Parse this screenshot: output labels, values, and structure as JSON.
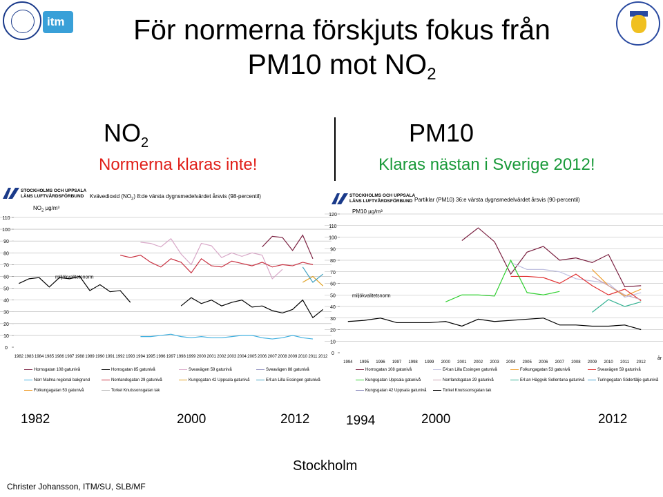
{
  "title": {
    "line1": "För normerna förskjuts fokus från",
    "line2_pre": "PM10 mot NO",
    "line2_sub": "2"
  },
  "left_header": {
    "label": "NO",
    "label_sub": "2",
    "status": "Normerna klaras inte!"
  },
  "right_header": {
    "label": "PM10",
    "status": "Klaras nästan i Sverige 2012!"
  },
  "org": {
    "line1": "STOCKHOLMS OCH UPPSALA",
    "line2": "LÄNS LUFTVÅRDSFÖRBUND"
  },
  "bottom_years": {
    "left": [
      "1982",
      "2000",
      "2012"
    ],
    "right": [
      "1994",
      "2000",
      "2012"
    ]
  },
  "footer": "Christer Johansson, ITM/SU, SLB/MF",
  "city": "Stockholm",
  "colors": {
    "red_status": "#e0201a",
    "green_status": "#1a9a3a"
  },
  "chart_data": [
    {
      "type": "line",
      "title_parts": [
        "Kvävedioxid (NO",
        "2",
        ") 8:de värsta dygnsmedelvärdet årsvis (98-percentil)"
      ],
      "ylabel_parts": [
        "NO",
        "2",
        " µg/m³"
      ],
      "x": [
        1982,
        1983,
        1984,
        1985,
        1986,
        1987,
        1988,
        1989,
        1990,
        1991,
        1992,
        1993,
        1994,
        1995,
        1996,
        1997,
        1998,
        1999,
        2000,
        2001,
        2002,
        2003,
        2004,
        2005,
        2006,
        2007,
        2008,
        2009,
        2010,
        2011,
        2012
      ],
      "xtick_labels": [
        "1982",
        "1983",
        "1984",
        "1985",
        "1986",
        "1987",
        "1988",
        "1989",
        "1990",
        "1991",
        "1992",
        "1993",
        "1994",
        "1995",
        "1996",
        "1997",
        "1998",
        "1999",
        "2000",
        "2001",
        "2002",
        "2003",
        "2004",
        "2005",
        "2006",
        "2007",
        "2008",
        "2009",
        "2010",
        "2011",
        "2012"
      ],
      "ylim": [
        0,
        110
      ],
      "yticks": [
        0,
        10,
        20,
        30,
        40,
        50,
        60,
        70,
        80,
        90,
        100,
        110
      ],
      "norm_label": "miljökvalitetsnorm",
      "norm_value": 60,
      "series": [
        {
          "name": "Hornsgatan 108 gatunivå",
          "color": "#7a2040",
          "values": [
            null,
            null,
            null,
            null,
            null,
            null,
            null,
            null,
            null,
            null,
            null,
            null,
            null,
            null,
            null,
            null,
            null,
            null,
            null,
            null,
            null,
            null,
            null,
            null,
            85,
            94,
            93,
            82,
            95,
            75,
            null
          ]
        },
        {
          "name": "Hornsgatan 85 gatunivå",
          "color": "#000000",
          "values": [
            54,
            58,
            59,
            51,
            59,
            58,
            60,
            48,
            53,
            47,
            48,
            38,
            null,
            null,
            null,
            null,
            35,
            42,
            37,
            40,
            35,
            38,
            40,
            34,
            35,
            31,
            29,
            32,
            40,
            25,
            32
          ]
        },
        {
          "name": "Sveavägen 59 gatunivå",
          "color": "#d8a8c8",
          "values": [
            null,
            null,
            null,
            null,
            null,
            null,
            null,
            null,
            null,
            null,
            null,
            null,
            89,
            88,
            85,
            92,
            79,
            70,
            88,
            86,
            76,
            80,
            77,
            80,
            78,
            58,
            66,
            null,
            null,
            null,
            null
          ]
        },
        {
          "name": "Sveavägen 88 gatunivå",
          "color": "#9090c0",
          "values": [
            null,
            null,
            null,
            null,
            null,
            null,
            null,
            null,
            null,
            null,
            null,
            null,
            null,
            null,
            null,
            null,
            null,
            null,
            null,
            null,
            null,
            null,
            null,
            null,
            null,
            null,
            null,
            null,
            null,
            null,
            null
          ]
        },
        {
          "name": "Norr Malma regional bakgrund",
          "color": "#40b0e0",
          "values": [
            null,
            null,
            null,
            null,
            null,
            null,
            null,
            null,
            null,
            null,
            null,
            null,
            9,
            9,
            10,
            11,
            9,
            8,
            9,
            8,
            8,
            9,
            10,
            10,
            8,
            7,
            8,
            10,
            8,
            7,
            null
          ]
        },
        {
          "name": "Norrlandsgatan 29 gatunivå",
          "color": "#c83040",
          "values": [
            null,
            null,
            null,
            null,
            null,
            null,
            null,
            null,
            null,
            null,
            78,
            76,
            78,
            72,
            68,
            75,
            72,
            63,
            75,
            69,
            68,
            73,
            71,
            69,
            72,
            68,
            70,
            69,
            72,
            70,
            null
          ]
        },
        {
          "name": "Kungsgatan 42 Uppsala gatunivå",
          "color": "#e0a020",
          "values": [
            null,
            null,
            null,
            null,
            null,
            null,
            null,
            null,
            null,
            null,
            null,
            null,
            null,
            null,
            null,
            null,
            null,
            null,
            null,
            null,
            null,
            null,
            null,
            null,
            null,
            null,
            null,
            null,
            55,
            60,
            52
          ]
        },
        {
          "name": "E4:an Lilla Essingen gatunivå",
          "color": "#40a0c0",
          "values": [
            null,
            null,
            null,
            null,
            null,
            null,
            null,
            null,
            null,
            null,
            null,
            null,
            null,
            null,
            null,
            null,
            null,
            null,
            null,
            null,
            null,
            null,
            null,
            null,
            null,
            null,
            null,
            null,
            68,
            55,
            62
          ]
        },
        {
          "name": "Folkungagatan 53 gatunivå",
          "color": "#f0a030",
          "values": [
            null,
            null,
            null,
            null,
            null,
            null,
            null,
            null,
            null,
            null,
            null,
            null,
            null,
            null,
            null,
            null,
            null,
            null,
            null,
            null,
            null,
            null,
            null,
            null,
            null,
            null,
            null,
            null,
            null,
            null,
            null
          ]
        },
        {
          "name": "Torkel Knutssonsgatan tak",
          "color": "#c0c0c0",
          "values": [
            null,
            null,
            null,
            null,
            null,
            null,
            null,
            null,
            null,
            null,
            null,
            null,
            null,
            null,
            null,
            null,
            null,
            null,
            null,
            null,
            null,
            null,
            null,
            null,
            null,
            null,
            null,
            null,
            null,
            null,
            null
          ]
        }
      ]
    },
    {
      "type": "line",
      "title": "Partiklar (PM10) 36:e värsta dygnsmedelvärdet årsvis (90-percentil)",
      "ylabel": "PM10 µg/m³",
      "xaxis_label": "år",
      "x": [
        1994,
        1995,
        1996,
        1997,
        1998,
        1999,
        2000,
        2001,
        2002,
        2003,
        2004,
        2005,
        2006,
        2007,
        2008,
        2009,
        2010,
        2011,
        2012
      ],
      "xtick_labels": [
        "1994",
        "1995",
        "1996",
        "1997",
        "1998",
        "1999",
        "2000",
        "2001",
        "2002",
        "2003",
        "2004",
        "2005",
        "2006",
        "2007",
        "2008",
        "2009",
        "2010",
        "2011",
        "2012"
      ],
      "ylim": [
        0,
        120
      ],
      "yticks": [
        0,
        10,
        20,
        30,
        40,
        50,
        60,
        70,
        80,
        90,
        100,
        110,
        120
      ],
      "norm_label": "miljökvalitetsnorm",
      "norm_value": 50,
      "series": [
        {
          "name": "Hornsgatan 108 gatunivå",
          "color": "#7a2040",
          "values": [
            null,
            null,
            null,
            null,
            null,
            null,
            null,
            97,
            108,
            96,
            68,
            87,
            92,
            80,
            82,
            78,
            85,
            57,
            58
          ]
        },
        {
          "name": "E4:an Lilla Essingen gatunivå",
          "color": "#c0c0e0",
          "values": [
            null,
            null,
            null,
            null,
            null,
            null,
            null,
            null,
            null,
            null,
            78,
            72,
            72,
            70,
            64,
            62,
            60,
            48,
            52
          ]
        },
        {
          "name": "Folkungagatan 53 gatunivå",
          "color": "#f0a030",
          "values": [
            null,
            null,
            null,
            null,
            null,
            null,
            null,
            null,
            null,
            null,
            null,
            null,
            null,
            null,
            null,
            72,
            58,
            49,
            55
          ]
        },
        {
          "name": "Sveavägen 59 gatunivå",
          "color": "#e03030",
          "values": [
            null,
            null,
            null,
            null,
            null,
            null,
            null,
            null,
            null,
            null,
            66,
            66,
            65,
            60,
            68,
            58,
            50,
            55,
            45
          ]
        },
        {
          "name": "Kungsgatan Uppsala gatunivå",
          "color": "#30d030",
          "values": [
            null,
            null,
            null,
            null,
            null,
            null,
            44,
            50,
            50,
            49,
            80,
            52,
            50,
            53,
            null,
            null,
            null,
            null,
            null
          ]
        },
        {
          "name": "Norrlandsgatan 29 gatunivå",
          "color": "#c8a0b0",
          "values": [
            null,
            null,
            null,
            null,
            null,
            null,
            null,
            null,
            null,
            null,
            null,
            null,
            null,
            null,
            null,
            66,
            58,
            50,
            46
          ]
        },
        {
          "name": "E4:an Häggvik Sollentuna gatunivå",
          "color": "#30b090",
          "values": [
            null,
            null,
            null,
            null,
            null,
            null,
            null,
            null,
            null,
            null,
            null,
            null,
            null,
            null,
            null,
            35,
            46,
            40,
            44
          ]
        },
        {
          "name": "Turingegatan Södertälje gatunivå",
          "color": "#40a0d0",
          "values": [
            null,
            null,
            null,
            null,
            null,
            null,
            null,
            null,
            null,
            null,
            null,
            null,
            null,
            null,
            null,
            null,
            null,
            null,
            null
          ]
        },
        {
          "name": "Kungsgatan 42 Uppsala gatunivå",
          "color": "#9090c0",
          "values": [
            null,
            null,
            null,
            null,
            null,
            null,
            null,
            null,
            null,
            null,
            null,
            null,
            null,
            null,
            null,
            null,
            null,
            null,
            null
          ]
        },
        {
          "name": "Torkel Knutssonsgatan tak",
          "color": "#000000",
          "values": [
            27,
            28,
            30,
            26,
            26,
            26,
            27,
            23,
            29,
            27,
            28,
            29,
            30,
            24,
            24,
            23,
            23,
            24,
            20
          ]
        }
      ]
    }
  ]
}
